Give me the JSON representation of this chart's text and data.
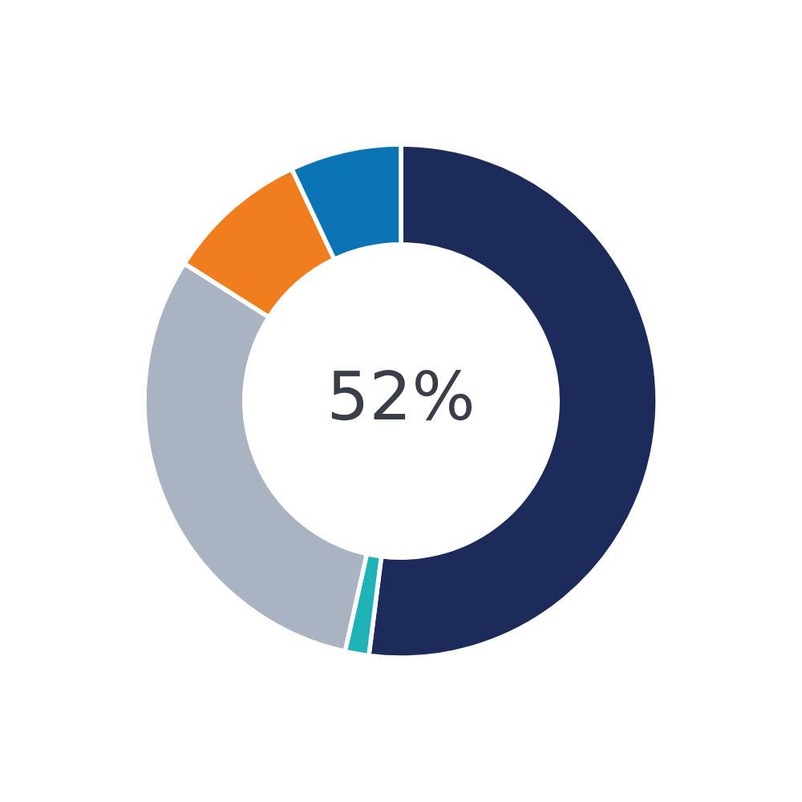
{
  "chart_data": {
    "type": "donut",
    "categories": [
      null,
      null,
      null,
      null,
      null
    ],
    "values": [
      52,
      1.5,
      30.5,
      9,
      7
    ],
    "colors": [
      "#1c2b5a",
      "#1fb3b8",
      "#a9b3c1",
      "#f07e1f",
      "#0b74b5"
    ],
    "annotations": [
      "52%"
    ]
  }
}
